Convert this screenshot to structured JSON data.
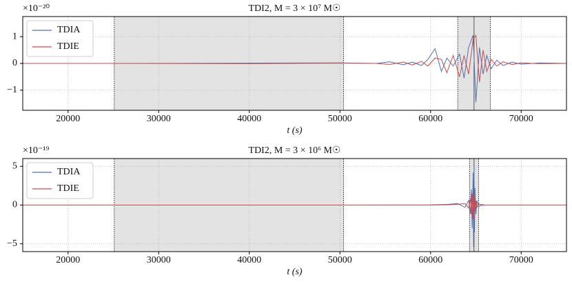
{
  "chart_data": [
    {
      "type": "line",
      "title": "TDI2, M = 3 × 10⁷ M☉",
      "xlabel": "t (s)",
      "y_offset_label": "×10⁻²⁰",
      "x": [
        15000,
        25000,
        40000,
        50000,
        54000,
        55500,
        57000,
        58000,
        59000,
        59700,
        60500,
        61200,
        61800,
        62500,
        63200,
        63700,
        64200,
        64700,
        65000,
        65400,
        65800,
        66200,
        66700,
        67300,
        68000,
        69000,
        70000,
        72000,
        75000
      ],
      "series": [
        {
          "name": "TDIA",
          "color": "#4c72b0",
          "values": [
            0,
            0,
            0.01,
            0.02,
            0,
            0.06,
            -0.05,
            0.05,
            -0.08,
            0.15,
            0.55,
            -0.3,
            0.2,
            -0.1,
            0.35,
            -0.55,
            0.6,
            1.05,
            -1.45,
            0.6,
            -0.4,
            0.3,
            -0.2,
            0.12,
            -0.08,
            0.05,
            -0.03,
            0.02,
            0
          ]
        },
        {
          "name": "TDIE",
          "color": "#d04a4a",
          "values": [
            0,
            0,
            -0.01,
            0.01,
            0,
            -0.04,
            0.05,
            -0.06,
            0.08,
            -0.1,
            0.2,
            0.15,
            -0.35,
            0.3,
            -0.5,
            0.3,
            -0.4,
            0.9,
            1.05,
            -0.7,
            0.5,
            -0.3,
            0.15,
            -0.1,
            0.06,
            -0.04,
            0.02,
            -0.01,
            0
          ]
        }
      ],
      "shaded_spans": [
        [
          25100,
          50400
        ],
        [
          63000,
          66600
        ]
      ],
      "span_color": "#e3e3e3",
      "vlines": [
        25100,
        50400,
        63000,
        64800,
        66600
      ],
      "xlim": [
        15000,
        75000
      ],
      "xticks": [
        20000,
        30000,
        40000,
        50000,
        60000,
        70000
      ],
      "ylim": [
        -1.75,
        1.75
      ],
      "yticks": [
        {
          "value": -1,
          "label": "−1"
        },
        0,
        1
      ],
      "grid": true,
      "legend": "upper-left"
    },
    {
      "type": "line",
      "title": "TDI2, M = 3 × 10⁶ M☉",
      "xlabel": "t (s)",
      "y_offset_label": "×10⁻¹⁹",
      "x": [
        15000,
        50000,
        60000,
        62000,
        63000,
        63800,
        64200,
        64400,
        64500,
        64600,
        64700,
        64750,
        64800,
        64850,
        64900,
        65000,
        65100,
        65300,
        65600,
        66000,
        70000,
        75000
      ],
      "series": [
        {
          "name": "TDIA",
          "color": "#4c72b0",
          "values": [
            0,
            0,
            0.02,
            0.1,
            0.2,
            -0.3,
            0.6,
            -1.1,
            2,
            -3,
            4.2,
            -5.4,
            5,
            -3.5,
            2.2,
            -1.2,
            0.6,
            -0.3,
            0.1,
            0,
            0,
            0
          ]
        },
        {
          "name": "TDIE",
          "color": "#d04a4a",
          "values": [
            0,
            0,
            0,
            0.05,
            0.1,
            0.2,
            -0.4,
            0.8,
            -1.2,
            1.5,
            -1.8,
            1.6,
            -1.9,
            1.2,
            -0.9,
            0.5,
            -0.3,
            0.2,
            -0.05,
            0,
            0,
            0
          ]
        }
      ],
      "shaded_spans": [
        [
          25100,
          50400
        ],
        [
          64300,
          65300
        ]
      ],
      "span_color": "#e3e3e3",
      "vlines": [
        25100,
        50400,
        64300,
        64800,
        65300
      ],
      "xlim": [
        15000,
        75000
      ],
      "xticks": [
        20000,
        30000,
        40000,
        50000,
        60000,
        70000
      ],
      "ylim": [
        -6,
        6
      ],
      "yticks": [
        {
          "value": -5,
          "label": "−5"
        },
        0,
        5
      ],
      "grid": true,
      "legend": "upper-left"
    }
  ]
}
